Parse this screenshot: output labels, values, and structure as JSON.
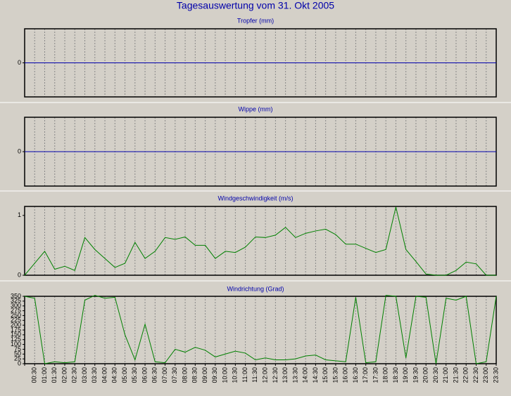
{
  "title": "Tagesauswertung vom 31. Okt 2005",
  "chart_data": [
    {
      "type": "line",
      "title": "Tropfer (mm)",
      "color": "#0000aa",
      "values": [
        0,
        0,
        0,
        0,
        0,
        0,
        0,
        0,
        0,
        0,
        0,
        0,
        0,
        0,
        0,
        0,
        0,
        0,
        0,
        0,
        0,
        0,
        0,
        0,
        0,
        0,
        0,
        0,
        0,
        0,
        0,
        0,
        0,
        0,
        0,
        0,
        0,
        0,
        0,
        0,
        0,
        0,
        0,
        0,
        0,
        0,
        0,
        0
      ],
      "ylim": [
        -1,
        1
      ],
      "yticks": [
        0
      ],
      "grid": true
    },
    {
      "type": "line",
      "title": "Wippe (mm)",
      "color": "#0000aa",
      "values": [
        0,
        0,
        0,
        0,
        0,
        0,
        0,
        0,
        0,
        0,
        0,
        0,
        0,
        0,
        0,
        0,
        0,
        0,
        0,
        0,
        0,
        0,
        0,
        0,
        0,
        0,
        0,
        0,
        0,
        0,
        0,
        0,
        0,
        0,
        0,
        0,
        0,
        0,
        0,
        0,
        0,
        0,
        0,
        0,
        0,
        0,
        0,
        0
      ],
      "ylim": [
        -1,
        1
      ],
      "yticks": [
        0
      ],
      "grid": true
    },
    {
      "type": "line",
      "title": "Windgeschwindigkeit (m/s)",
      "color": "#008000",
      "values": [
        0,
        0.2,
        0.4,
        0.1,
        0.15,
        0.08,
        0.63,
        0.43,
        0.28,
        0.13,
        0.2,
        0.55,
        0.28,
        0.4,
        0.63,
        0.6,
        0.64,
        0.5,
        0.5,
        0.28,
        0.4,
        0.38,
        0.47,
        0.64,
        0.63,
        0.67,
        0.8,
        0.63,
        0.7,
        0.74,
        0.77,
        0.68,
        0.52,
        0.52,
        0.45,
        0.38,
        0.43,
        1.14,
        0.43,
        0.23,
        0.02,
        0,
        0,
        0.08,
        0.22,
        0.19,
        0,
        0
      ],
      "ylim": [
        0,
        1.15
      ],
      "yticks": [
        0,
        1
      ],
      "grid": true
    },
    {
      "type": "line",
      "title": "Windrichtung (Grad)",
      "color": "#008000",
      "categories": [
        null,
        "00:30",
        "01:00",
        "01:30",
        "02:00",
        "02:30",
        "03:00",
        "03:30",
        "04:00",
        "04:30",
        "05:00",
        "05:30",
        "06:00",
        "06:30",
        "07:00",
        "07:30",
        "08:00",
        "08:30",
        "09:00",
        "09:30",
        "10:00",
        "10:30",
        "11:00",
        "11:30",
        "12:00",
        "12:30",
        "13:00",
        "13:30",
        "14:00",
        "14:30",
        "15:00",
        "15:30",
        "16:00",
        "16:30",
        "17:00",
        "17:30",
        "18:00",
        "18:30",
        "19:00",
        "19:30",
        "20:00",
        "20:30",
        "21:00",
        "21:30",
        "22:00",
        "22:30",
        "23:00",
        "23:30"
      ],
      "values": [
        350,
        340,
        0,
        10,
        5,
        10,
        330,
        355,
        340,
        345,
        150,
        20,
        205,
        10,
        5,
        75,
        60,
        85,
        70,
        35,
        50,
        65,
        55,
        20,
        30,
        20,
        20,
        25,
        40,
        45,
        20,
        15,
        10,
        345,
        5,
        10,
        355,
        350,
        30,
        350,
        345,
        0,
        340,
        330,
        350,
        0,
        10,
        350
      ],
      "ylim": [
        0,
        350
      ],
      "yticks": [
        0,
        25,
        50,
        75,
        100,
        125,
        150,
        175,
        200,
        225,
        250,
        275,
        300,
        325,
        350
      ],
      "grid": true
    }
  ]
}
